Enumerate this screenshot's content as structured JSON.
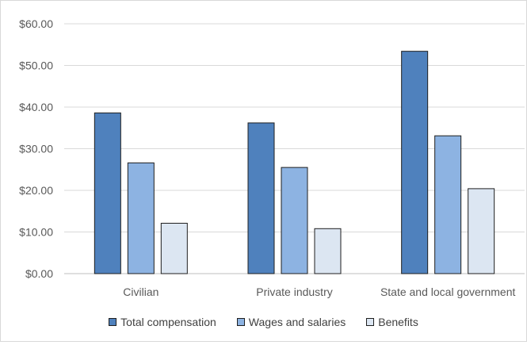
{
  "chart_data": {
    "type": "bar",
    "categories": [
      "Civilian",
      "Private industry",
      "State and local government"
    ],
    "series": [
      {
        "name": "Total compensation",
        "values": [
          38.6,
          36.2,
          53.4
        ],
        "color": "#4f81bd"
      },
      {
        "name": "Wages and salaries",
        "values": [
          26.6,
          25.5,
          33.1
        ],
        "color": "#8db3e2"
      },
      {
        "name": "Benefits",
        "values": [
          12.1,
          10.8,
          20.4
        ],
        "color": "#dce6f2"
      }
    ],
    "yticks": [
      "$0.00",
      "$10.00",
      "$20.00",
      "$30.00",
      "$40.00",
      "$50.00",
      "$60.00"
    ],
    "ylim": [
      0,
      60
    ],
    "grid": true,
    "legend_position": "bottom"
  }
}
